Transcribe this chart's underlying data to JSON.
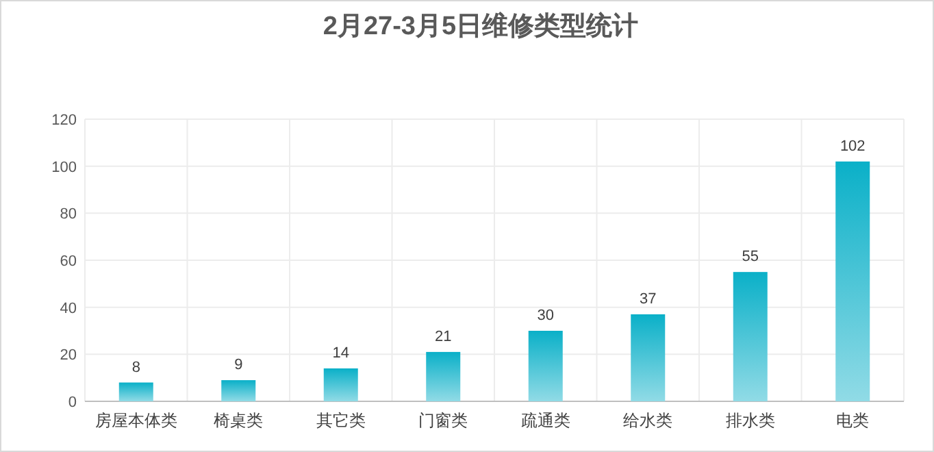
{
  "chart_data": {
    "type": "bar",
    "title": "2月27-3月5日维修类型统计",
    "categories": [
      "房屋本体类",
      "椅桌类",
      "其它类",
      "门窗类",
      "疏通类",
      "给水类",
      "排水类",
      "电类"
    ],
    "values": [
      8,
      9,
      14,
      21,
      30,
      37,
      55,
      102
    ],
    "color": "#0ab0c8",
    "ylim": [
      0,
      120
    ],
    "yticks": [
      0,
      20,
      40,
      60,
      80,
      100,
      120
    ],
    "grid": true,
    "data_labels": true
  }
}
